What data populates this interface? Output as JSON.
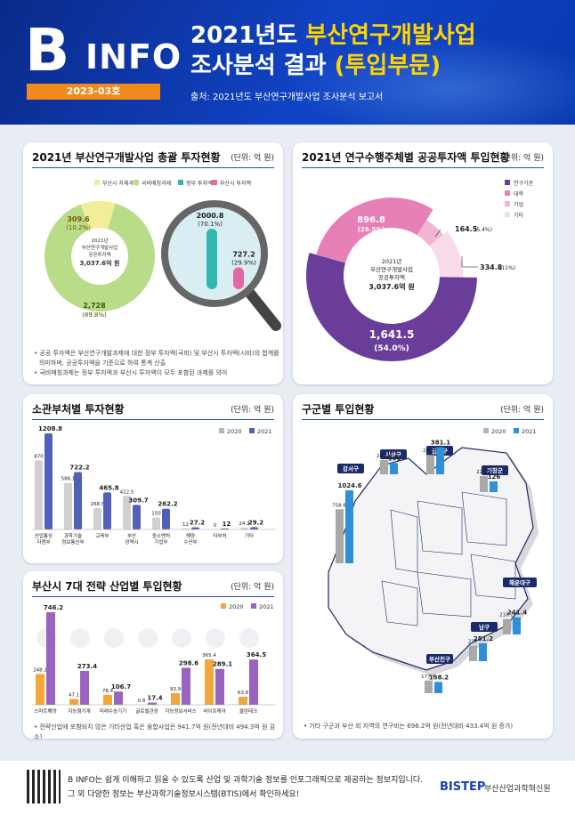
{
  "header": {
    "logo_b": "B",
    "logo_info": "INFO",
    "issue": "2023-03호",
    "title_line1_pre": "2021년도 ",
    "title_line1_hl": "부산연구개발사업",
    "title_line2_pre": "조사분석 결과 ",
    "title_line2_hl": "(투입부문)",
    "source": "출처: 2021년도 부산연구개발사업 조사분석 보고서"
  },
  "panels": {
    "p1": {
      "title": "2021년 부산연구개발사업 총괄 투자현황",
      "unit": "(단위: 억 원)",
      "notes": [
        "• 공공 투자액은 부산연구개발과제에 대한 정부 투자액(국비) 및 부산시 투자액(시비)의 합계를",
        "의미하며, 공공투자액을 기준으로 하여 통계 산출",
        "• 국비매칭과제는 정부 투자액과 부산시 투자액이 모두 포함된 과제를 의미"
      ]
    },
    "p2": {
      "title": "2021년 연구수행주체별 공공투자액 투입현황",
      "unit": "(단위: 억 원)"
    },
    "p3": {
      "title": "소관부처별 투자현황",
      "unit": "(단위: 억 원)"
    },
    "p4": {
      "title": "구군별 투입현황",
      "unit": "(단위: 억 원)",
      "notes": [
        "• 기타 구군과 부산 외 지역의 연구비는 696.2억 원(전년대비 433.4억 원 증가)"
      ]
    },
    "p5": {
      "title": "부산시 7대 전략 산업별 투입현황",
      "unit": "(단위: 억 원)",
      "notes": [
        "• 전략산업에 포함되지 않은 기타산업 혹은 융합사업은 941.7억 원(전년대비 494.3억 원 감소)"
      ]
    }
  },
  "footer": {
    "line1": "B INFO는 쉽게 이해하고 읽을 수 있도록 산업 및 과학기술 정보를 인포그래픽으로 제공하는 정보지입니다.",
    "line2": "그 외 다양한 정보는 부산과학기술정보시스템(BTIS)에서 확인하세요!",
    "brand": "BISTEP",
    "brand_name": "부산산업과학혁신원"
  },
  "colors": {
    "c2020": "#a8a8a8",
    "c2021": "#5160b8",
    "orange": "#f4a63a",
    "purple": "#9a63c0",
    "navy": "#1a3fb0"
  },
  "chart_data": [
    {
      "id": "overall",
      "type": "pie",
      "legend": [
        "부산시 자체과제",
        "국비매칭과제",
        "정부 투자액",
        "부산시 투자액"
      ],
      "center": [
        "2021년",
        "부산연구개발사업",
        "공공투자액",
        "3,037.6억 원"
      ],
      "slices": [
        {
          "name": "부산시 자체과제",
          "value": 309.6,
          "pct": "(10.2%)"
        },
        {
          "name": "국비매칭과제",
          "value": 2728,
          "pct": "(89.8%)",
          "label": "2,728"
        }
      ],
      "breakdown": [
        {
          "name": "정부 투자액",
          "value": 2000.8,
          "pct": "(70.1%)"
        },
        {
          "name": "부산시 투자액",
          "value": 727.2,
          "pct": "(29.9%)"
        }
      ]
    },
    {
      "id": "performer",
      "type": "pie",
      "legend": [
        "연구기관",
        "대학",
        "기업",
        "기타"
      ],
      "center": [
        "2021년",
        "부산연구개발사업",
        "공공투자액",
        "3,037.6억 원"
      ],
      "slices": [
        {
          "name": "연구기관",
          "value": 1641.5,
          "label": "1,641.5",
          "pct": "(54.0%)"
        },
        {
          "name": "대학",
          "value": 896.8,
          "label": "896.8",
          "pct": "(29.5%)"
        },
        {
          "name": "기업",
          "value": 164.5,
          "label": "164.5",
          "pct": "(5.4%)"
        },
        {
          "name": "기타",
          "value": 334.8,
          "label": "334.8",
          "pct": "(11%)"
        }
      ]
    },
    {
      "id": "ministry",
      "type": "bar",
      "legend": [
        "2020",
        "2021"
      ],
      "categories": [
        [
          "산업통상",
          "자원부"
        ],
        [
          "과학기술",
          "정보통신부"
        ],
        [
          "교육부"
        ],
        [
          "부산",
          "광역시"
        ],
        [
          "중소벤처",
          "기업부"
        ],
        [
          "해양",
          "수산부"
        ],
        [
          "타부처"
        ],
        [
          "기타"
        ]
      ],
      "series": [
        {
          "name": "2020",
          "values": [
            870,
            586.1,
            268.5,
            422.5,
            150,
            12,
            0,
            24.2
          ],
          "labels": [
            "870",
            "586.1",
            "268.5",
            "422.5",
            "150",
            "12",
            "0",
            "24.2"
          ]
        },
        {
          "name": "2021",
          "values": [
            1208.8,
            722.2,
            465.8,
            309.7,
            262.2,
            27.2,
            12,
            29.2
          ],
          "labels": [
            "1208.8",
            "722.2",
            "465.8",
            "309.7",
            "262.2",
            "27.2",
            "12",
            "29.2"
          ]
        }
      ]
    },
    {
      "id": "district",
      "type": "bar",
      "legend": [
        "2020",
        "2021"
      ],
      "groups": [
        {
          "name": "강서구",
          "v2020": 758.6,
          "v2021": 1024.6,
          "l2020": "758.6",
          "l2021": "1024.6"
        },
        {
          "name": "사상구",
          "v2020": 201.8,
          "v2021": 159,
          "l2020": "201.8",
          "l2021": "159"
        },
        {
          "name": "금정구",
          "v2020": 271.9,
          "v2021": 381.1,
          "l2020": "271.9",
          "l2021": "381.1"
        },
        {
          "name": "기장군",
          "v2020": 225.2,
          "v2021": 126,
          "l2020": "225.2",
          "l2021": "126"
        },
        {
          "name": "해운대구",
          "v2020": 218.2,
          "v2021": 241.4,
          "l2020": "218.2",
          "l2021": "241.4"
        },
        {
          "name": "남구",
          "v2020": 217,
          "v2021": 251.2,
          "l2020": "217",
          "l2021": "251.2"
        },
        {
          "name": "부산진구",
          "v2020": 177.9,
          "v2021": 158.2,
          "l2020": "177.9",
          "l2021": "158.2"
        }
      ]
    },
    {
      "id": "strategic",
      "type": "bar",
      "legend": [
        "2020",
        "2021"
      ],
      "categories": [
        "스마트해양",
        "지능형기계",
        "미래수송기기",
        "글로벌관광",
        "지능정보서비스",
        "라이프케어",
        "클린테크"
      ],
      "series": [
        {
          "name": "2020",
          "values": [
            248.2,
            47.1,
            78.4,
            0.8,
            93.9,
            365.4,
            63.8
          ],
          "labels": [
            "248.2",
            "47.1",
            "78.4",
            "0.8",
            "93.9",
            "365.4",
            "63.8"
          ]
        },
        {
          "name": "2021",
          "values": [
            746.2,
            273.4,
            106.7,
            17.4,
            298.6,
            289.1,
            364.5
          ],
          "labels": [
            "746.2",
            "273.4",
            "106.7",
            "17.4",
            "298.6",
            "289.1",
            "364.5"
          ]
        }
      ]
    }
  ]
}
